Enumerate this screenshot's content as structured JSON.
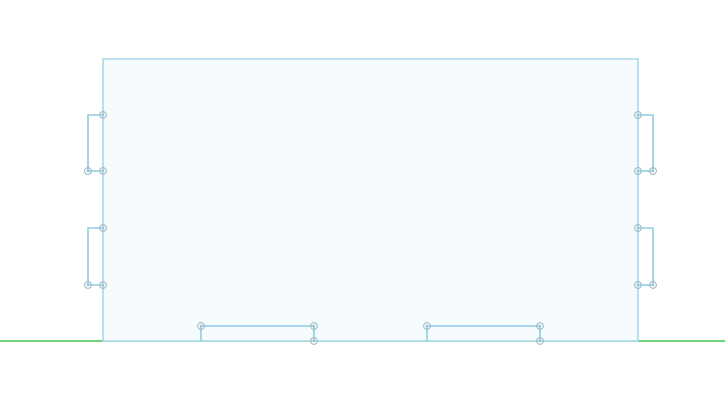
{
  "colors": {
    "background": "#ffffff",
    "region_fill": "#f6fbfd",
    "region_stroke": "#a9d8ea",
    "wire": "#8fcde3",
    "ground_line": "#45bf4f",
    "handle": "#9ab7c3"
  },
  "icons": {
    "vertex_handle": "circle-crosshair-icon"
  },
  "counts": {
    "vertex_handles": 18,
    "left_notches": 2,
    "right_notches": 2,
    "bottom_notches": 2
  }
}
